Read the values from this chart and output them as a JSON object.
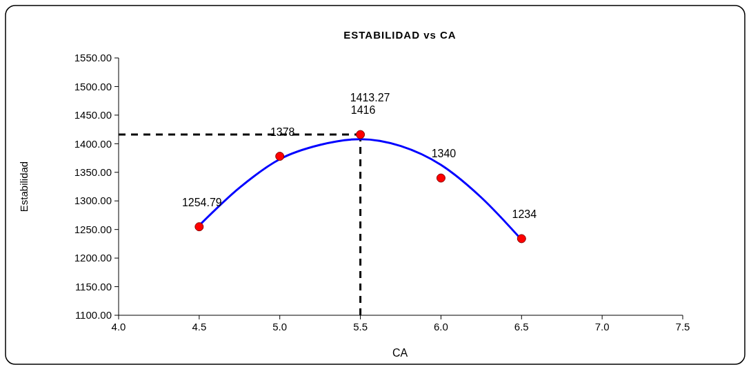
{
  "chart_data": {
    "type": "scatter",
    "title": "ESTABILIDAD vs CA",
    "xlabel": "CA",
    "ylabel": "Estabilidad",
    "xlim": [
      4.0,
      7.5
    ],
    "xticks": [
      {
        "value": 4,
        "label": "4.0"
      },
      {
        "value": 4.5,
        "label": "4.5"
      },
      {
        "value": 5,
        "label": "5.0"
      },
      {
        "value": 5.5,
        "label": "5.5"
      },
      {
        "value": 6,
        "label": "6.0"
      },
      {
        "value": 6.5,
        "label": "6.5"
      },
      {
        "value": 7,
        "label": "7.0"
      },
      {
        "value": 7.5,
        "label": "7.5"
      }
    ],
    "ylim": [
      1100,
      1550
    ],
    "yticks": [
      {
        "value": 1100,
        "label": "1100.00"
      },
      {
        "value": 1150,
        "label": "1150.00"
      },
      {
        "value": 1200,
        "label": "1200.00"
      },
      {
        "value": 1250,
        "label": "1250.00"
      },
      {
        "value": 1300,
        "label": "1300.00"
      },
      {
        "value": 1350,
        "label": "1350.00"
      },
      {
        "value": 1400,
        "label": "1400.00"
      },
      {
        "value": 1450,
        "label": "1450.00"
      },
      {
        "value": 1500,
        "label": "1500.00"
      },
      {
        "value": 1550,
        "label": "1550.00"
      }
    ],
    "grid": false,
    "marker": "circle",
    "series": [
      {
        "type": "line",
        "color": "#0000ff",
        "marker": "none",
        "x": [
          4.5,
          4.75,
          5.0,
          5.25,
          5.5,
          5.75,
          6.0,
          6.25,
          6.5
        ],
        "values": [
          1257,
          1323,
          1373,
          1398,
          1408,
          1396,
          1363,
          1306,
          1232
        ]
      },
      {
        "color": "#ff0000",
        "x": [
          4.5,
          5.0,
          5.5,
          6.0,
          6.5
        ],
        "values": [
          1254.79,
          1378,
          1416,
          1340,
          1234
        ],
        "value_labels": [
          "1254.79",
          "1378",
          "1416",
          "1340",
          "1234"
        ]
      }
    ],
    "ref_lines": [
      {
        "axis": "x",
        "value": 5.5,
        "line_style": "dashed",
        "color": "#000000"
      },
      {
        "axis": "y",
        "value": 1416,
        "line_style": "dashed",
        "color": "#000000"
      }
    ],
    "annotations": [
      {
        "text": "1413.27",
        "x": 5.5,
        "y": 1416
      }
    ]
  }
}
